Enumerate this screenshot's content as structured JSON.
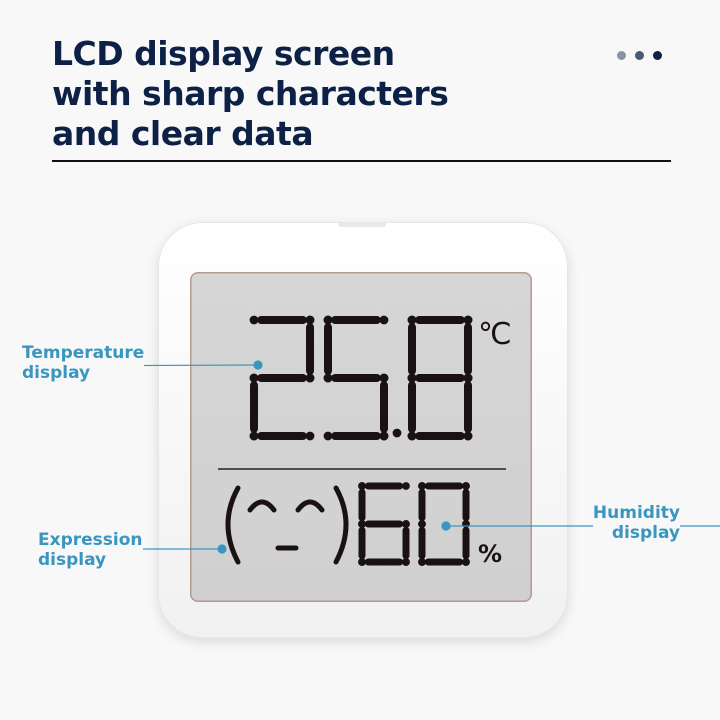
{
  "heading": {
    "lines": [
      "LCD display screen",
      "with sharp characters",
      "and clear data"
    ]
  },
  "pagination_dots": [
    "#8a93a6",
    "#4a5873",
    "#0d2146"
  ],
  "display": {
    "temperature": "25.8",
    "temperature_unit": "℃",
    "humidity": "60",
    "humidity_unit": "%",
    "expression": "(⌒_⌒)"
  },
  "callouts": {
    "temperature": [
      "Temperature",
      "display"
    ],
    "expression": [
      "Expression",
      "display"
    ],
    "humidity": [
      "Humidity",
      "display"
    ]
  },
  "colors": {
    "callout": "#3a96c0",
    "heading": "#0d2146",
    "segment": "#1a1212"
  }
}
